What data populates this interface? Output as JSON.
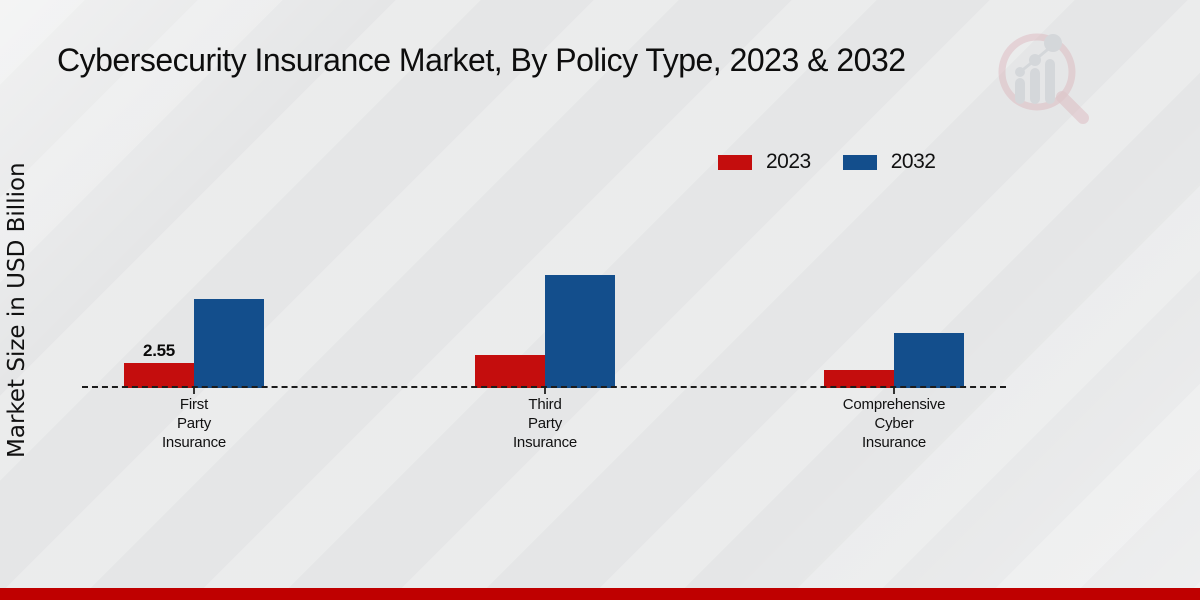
{
  "header": {
    "title": "Cybersecurity Insurance Market, By Policy Type, 2023 & 2032"
  },
  "y_axis": {
    "label": "Market Size in USD Billion"
  },
  "colors": {
    "series_2023": "#c40d0d",
    "series_2032": "#134e8c",
    "bottom_band": "#bf0000",
    "background": "#e8e9ea",
    "baseline": "#1c1c1c",
    "watermark_ring": "#d9aeb4",
    "watermark_bars": "#c7cbd0"
  },
  "chart_data": {
    "type": "bar",
    "title": "Cybersecurity Insurance Market, By Policy Type, 2023 & 2032",
    "ylabel": "Market Size in USD Billion",
    "xlabel": "",
    "categories": [
      "First\nParty\nInsurance",
      "Third\nParty\nInsurance",
      "Comprehensive\nCyber\nInsurance"
    ],
    "series": [
      {
        "name": "2023",
        "color": "#c40d0d",
        "values": [
          2.55,
          3.35,
          1.8
        ],
        "labels": [
          "2.55",
          "",
          ""
        ]
      },
      {
        "name": "2032",
        "color": "#134e8c",
        "values": [
          9.0,
          11.4,
          5.5
        ],
        "labels": [
          "",
          "",
          ""
        ]
      }
    ],
    "legend_position": "top-right",
    "grid": false,
    "baseline_style": "dashed",
    "ylim": [
      0,
      12
    ]
  }
}
